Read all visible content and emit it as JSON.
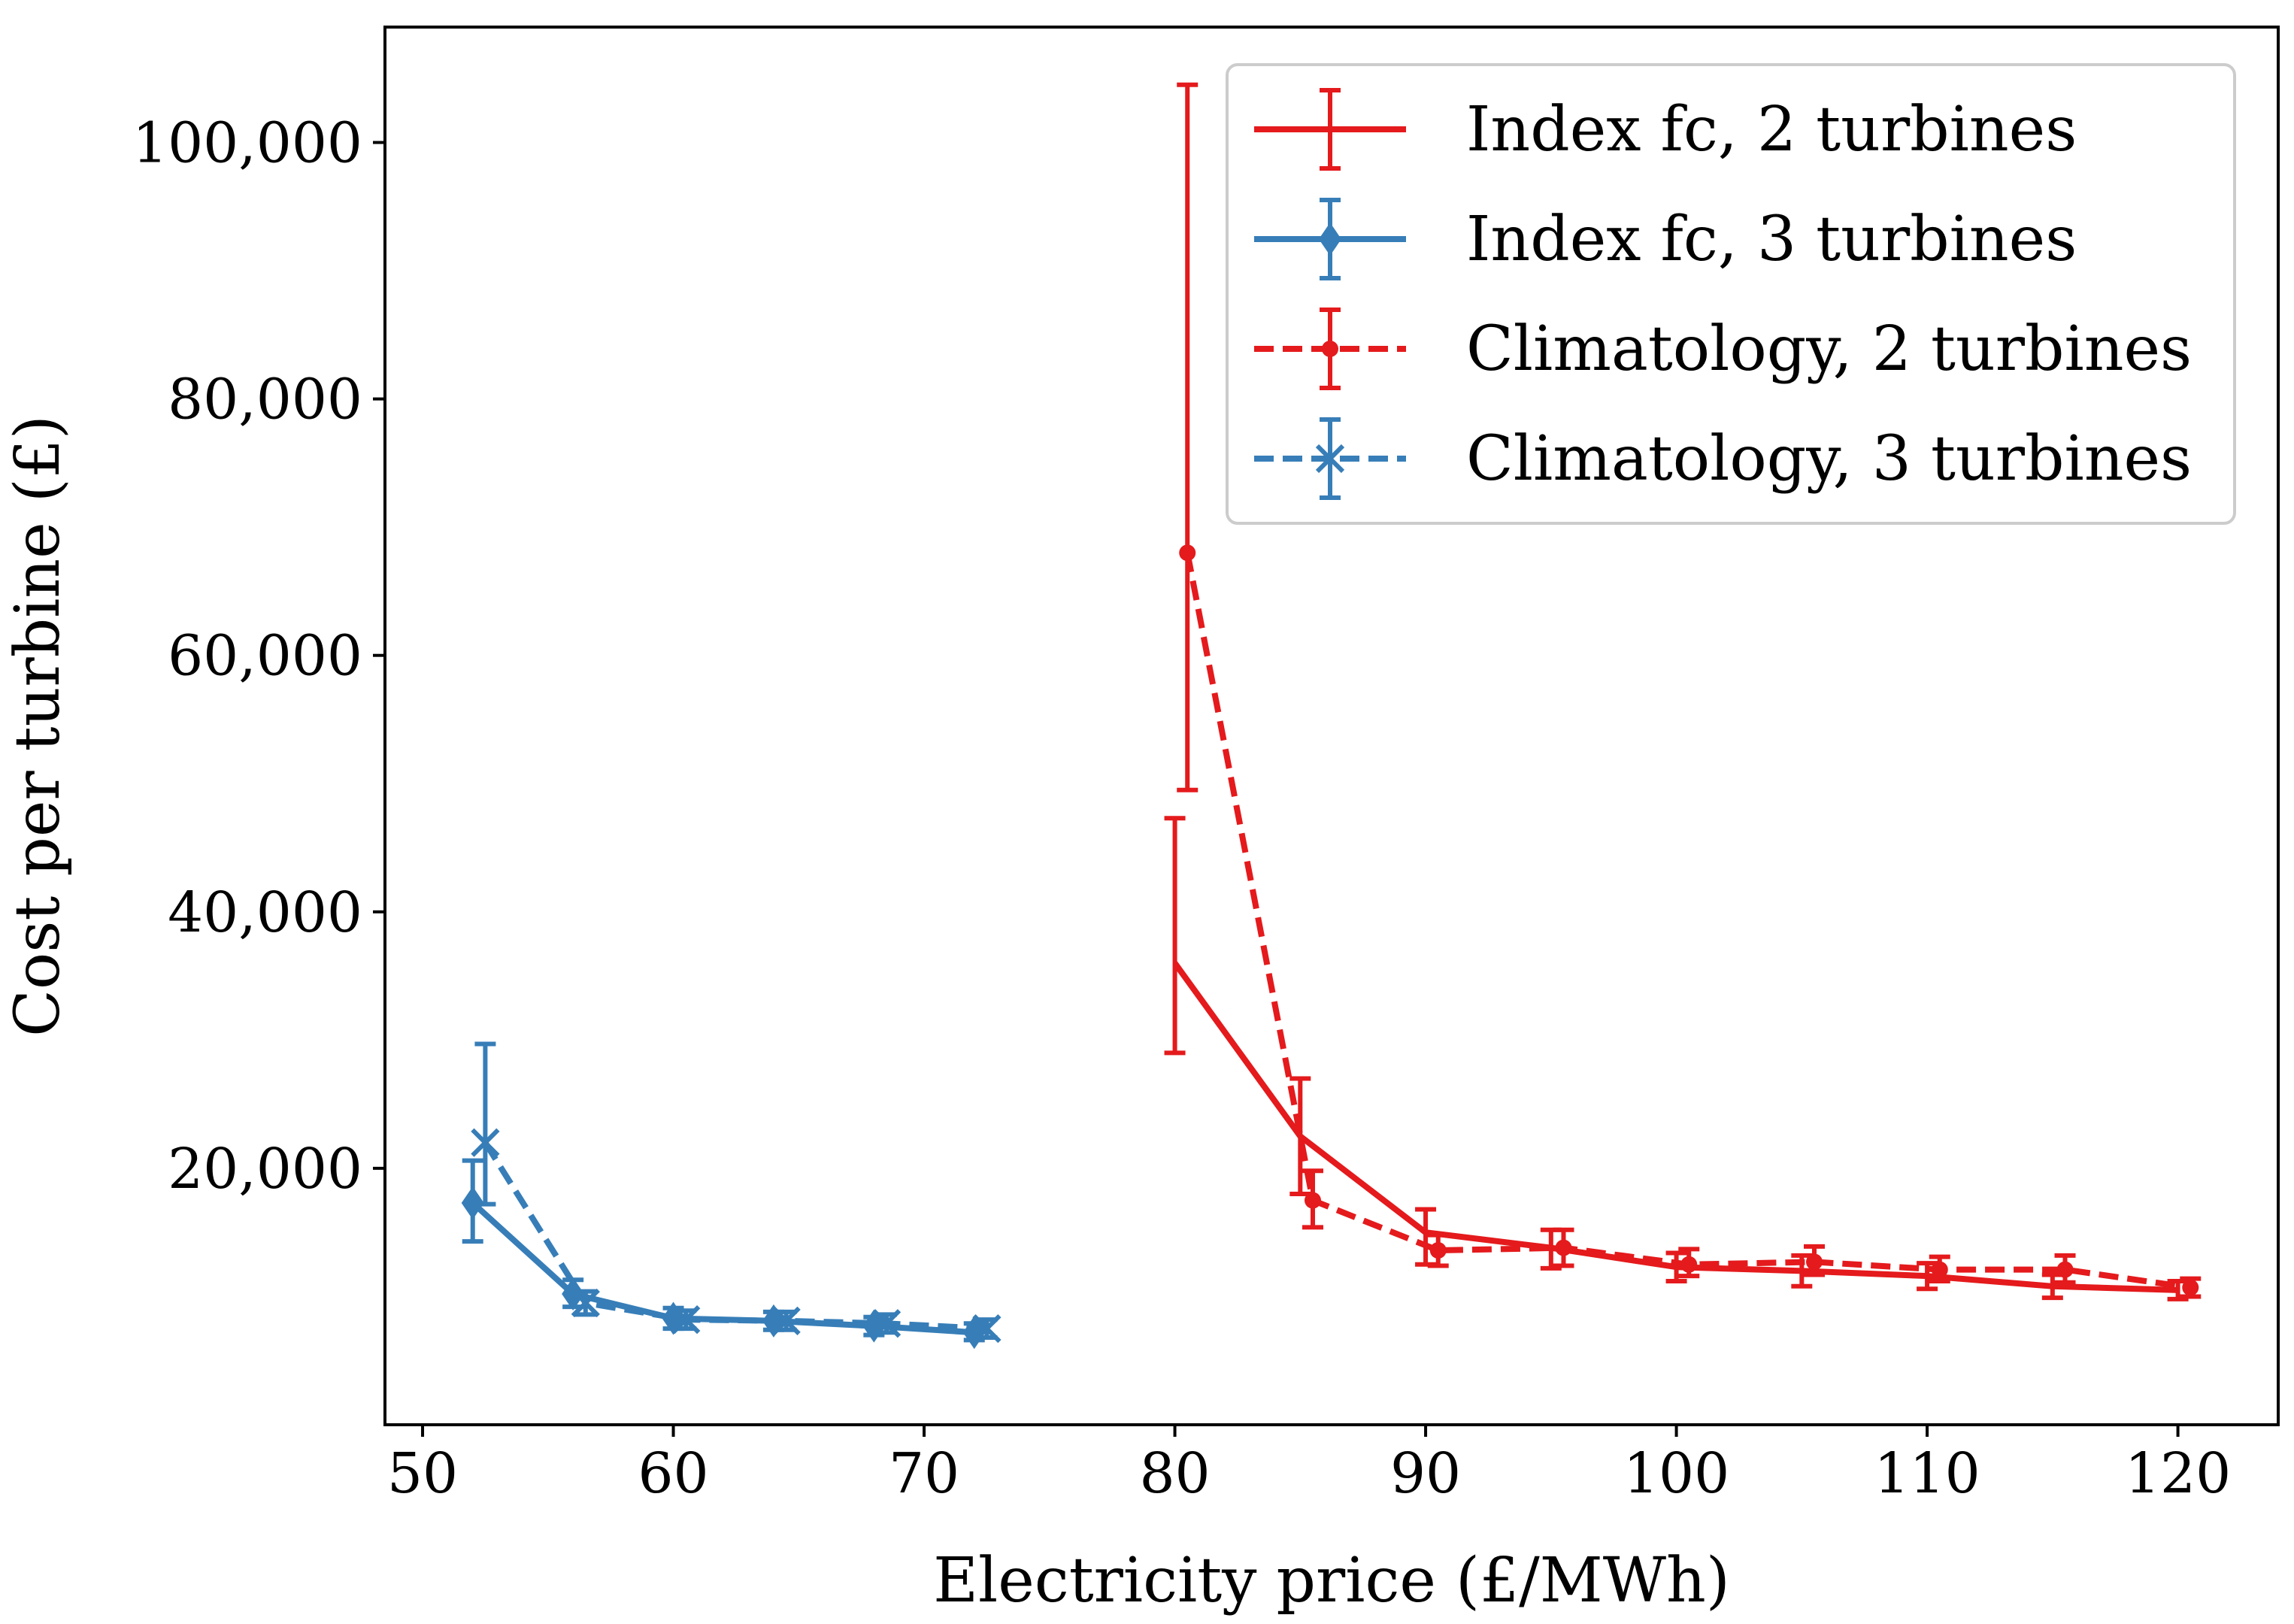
{
  "chart_data": {
    "type": "line",
    "title": "",
    "xlabel": "Electricity price (£/MWh)",
    "ylabel": "Cost per turbine (£)",
    "xlim": [
      48.5,
      124
    ],
    "ylim": [
      0,
      109000
    ],
    "xticks": [
      50,
      60,
      70,
      80,
      90,
      100,
      110,
      120
    ],
    "xtick_labels": [
      "50",
      "60",
      "70",
      "80",
      "90",
      "100",
      "110",
      "120"
    ],
    "yticks": [
      20000,
      40000,
      60000,
      80000,
      100000
    ],
    "ytick_labels": [
      "20,000",
      "40,000",
      "60,000",
      "80,000",
      "100,000"
    ],
    "grid": false,
    "legend_position": "top-right",
    "colors": {
      "red": "#e41a1c",
      "blue": "#377eb8"
    },
    "series": [
      {
        "name": "Index fc, 2 turbines",
        "color": "#e41a1c",
        "line_style": "solid",
        "marker": "none",
        "x": [
          80,
          85,
          90,
          95,
          100,
          105,
          110,
          115,
          120
        ],
        "y": [
          36000,
          22500,
          15000,
          13800,
          12300,
          12000,
          11600,
          10800,
          10500
        ],
        "y_err_low": [
          29000,
          18000,
          12500,
          12200,
          11200,
          10800,
          10600,
          9900,
          9800
        ],
        "y_err_high": [
          47300,
          27000,
          16800,
          15200,
          13400,
          13200,
          12600,
          11700,
          11200
        ]
      },
      {
        "name": "Index fc, 3 turbines",
        "color": "#377eb8",
        "line_style": "solid",
        "marker": "diamond",
        "x": [
          52,
          56,
          60,
          64,
          68,
          72
        ],
        "y": [
          17300,
          10200,
          8300,
          8100,
          7700,
          7200
        ],
        "y_err_low": [
          14300,
          9200,
          7500,
          7400,
          7000,
          6600
        ],
        "y_err_high": [
          20600,
          11300,
          9100,
          8800,
          8400,
          7900
        ]
      },
      {
        "name": "Climatology, 2 turbines",
        "color": "#e41a1c",
        "line_style": "dashed",
        "marker": "circle",
        "x": [
          80.5,
          85.5,
          90.5,
          95.5,
          100.5,
          105.5,
          110.5,
          115.5,
          120.5
        ],
        "y": [
          68000,
          17500,
          13600,
          13800,
          12500,
          12700,
          12100,
          12100,
          10700
        ],
        "y_err_low": [
          49500,
          15400,
          12400,
          12400,
          11600,
          11700,
          11200,
          11100,
          10000
        ],
        "y_err_high": [
          104500,
          19800,
          14800,
          15200,
          13700,
          13900,
          13100,
          13200,
          11400
        ]
      },
      {
        "name": "Climatology, 3 turbines",
        "color": "#377eb8",
        "line_style": "dashed",
        "marker": "x",
        "x": [
          52.5,
          56.5,
          60.5,
          64.5,
          68.5,
          72.5
        ],
        "y": [
          22000,
          9500,
          8200,
          8100,
          7900,
          7500
        ],
        "y_err_low": [
          17200,
          8600,
          7500,
          7400,
          7200,
          6800
        ],
        "y_err_high": [
          29700,
          10400,
          8900,
          8800,
          8600,
          8200
        ]
      }
    ]
  }
}
